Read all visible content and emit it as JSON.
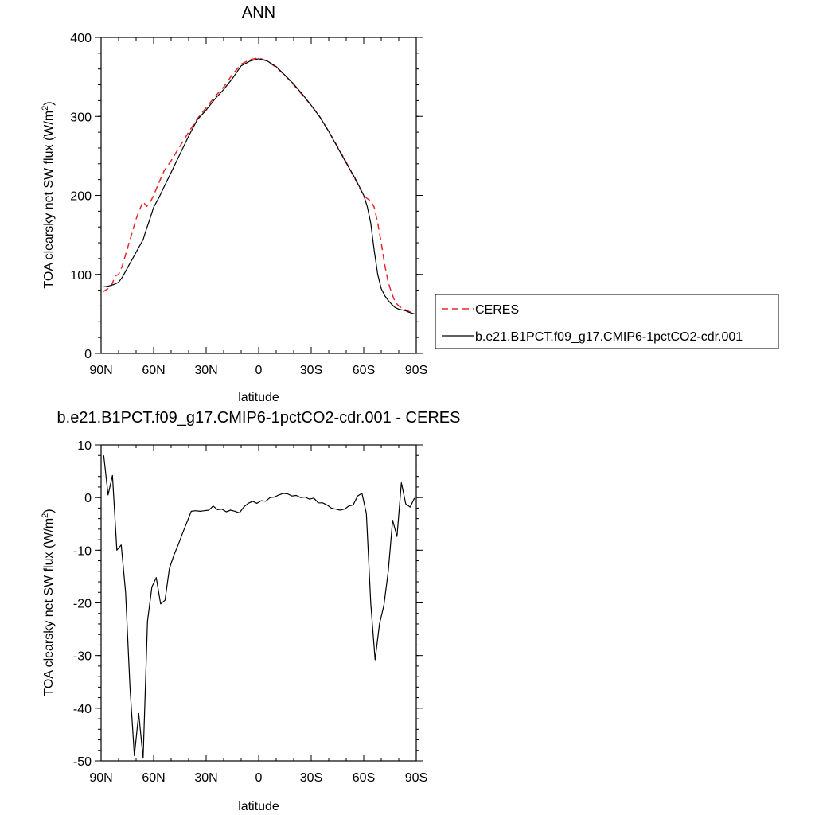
{
  "chart_data": [
    {
      "type": "line",
      "title": "ANN",
      "xlabel": "latitude",
      "ylabel": "TOA clearsky net SW flux (W/m",
      "ylabel_sup": "2",
      "ylabel_end": ")",
      "xlim": [
        90,
        -90
      ],
      "ylim": [
        0,
        400
      ],
      "xticks": [
        90,
        60,
        30,
        0,
        -30,
        -60,
        -90
      ],
      "xtick_labels": [
        "90N",
        "60N",
        "30N",
        "0",
        "30S",
        "60S",
        "90S"
      ],
      "yticks": [
        0,
        100,
        200,
        300,
        400
      ],
      "ytick_labels": [
        "0",
        "100",
        "200",
        "300",
        "400"
      ],
      "legend": "right",
      "series": [
        {
          "name": "CERES",
          "color": "#e8262a",
          "dash": "dashed",
          "x": [
            89,
            86,
            84,
            82,
            80,
            78,
            76,
            74,
            72,
            70,
            68,
            66,
            64,
            62,
            60,
            57,
            54,
            50,
            45,
            40,
            35,
            30,
            25,
            20,
            15,
            10,
            5,
            0,
            -5,
            -10,
            -15,
            -20,
            -25,
            -30,
            -35,
            -40,
            -45,
            -50,
            -55,
            -58,
            -60,
            -62,
            -64,
            -66,
            -68,
            -70,
            -72,
            -74,
            -76,
            -78,
            -80,
            -82,
            -84,
            -86,
            -89
          ],
          "y": [
            78,
            82,
            86,
            98,
            100,
            110,
            125,
            140,
            155,
            170,
            182,
            192,
            186,
            191,
            200,
            216,
            231,
            244,
            262,
            280,
            297,
            311,
            325,
            337,
            353,
            366,
            372,
            374,
            370,
            362,
            352,
            340,
            327,
            314,
            299,
            281,
            262,
            242,
            221,
            208,
            200,
            196,
            193,
            185,
            165,
            140,
            112,
            90,
            76,
            65,
            60,
            57,
            55,
            53,
            50
          ]
        },
        {
          "name": "b.e21.B1PCT.f09_g17.CMIP6-1pctCO2-cdr.001",
          "color": "#000000",
          "dash": "solid",
          "x": [
            89,
            86,
            83,
            80,
            78,
            76,
            74,
            72,
            70,
            68,
            66,
            64,
            62,
            60,
            57,
            54,
            50,
            45,
            40,
            35,
            30,
            25,
            20,
            15,
            10,
            5,
            0,
            -5,
            -10,
            -15,
            -20,
            -25,
            -30,
            -35,
            -40,
            -45,
            -50,
            -55,
            -58,
            -60,
            -62,
            -64,
            -66,
            -68,
            -70,
            -72,
            -74,
            -76,
            -78,
            -80,
            -82,
            -84,
            -86,
            -89
          ],
          "y": [
            84,
            85,
            87,
            90,
            96,
            104,
            112,
            120,
            128,
            136,
            144,
            158,
            171,
            185,
            197,
            211,
            229,
            252,
            275,
            296,
            308,
            322,
            334,
            348,
            364,
            370,
            373,
            370,
            363,
            352,
            341,
            328,
            314,
            299,
            281,
            261,
            241,
            222,
            209,
            200,
            186,
            165,
            130,
            100,
            82,
            73,
            67,
            62,
            58,
            56,
            55,
            54,
            52,
            50
          ]
        }
      ]
    },
    {
      "type": "line",
      "title": "b.e21.B1PCT.f09_g17.CMIP6-1pctCO2-cdr.001 - CERES",
      "xlabel": "latitude",
      "ylabel": "TOA clearsky net SW flux (W/m",
      "ylabel_sup": "2",
      "ylabel_end": ")",
      "xlim": [
        90,
        -90
      ],
      "ylim": [
        -50,
        10
      ],
      "xticks": [
        90,
        60,
        30,
        0,
        -30,
        -60,
        -90
      ],
      "xtick_labels": [
        "90N",
        "60N",
        "30N",
        "0",
        "30S",
        "60S",
        "90S"
      ],
      "yticks": [
        -50,
        -40,
        -30,
        -20,
        -10,
        0,
        10
      ],
      "ytick_labels": [
        "-50",
        "-40",
        "-30",
        "-20",
        "-10",
        "0",
        "10"
      ],
      "series": [
        {
          "color": "#000000",
          "dash": "solid",
          "x": [
            88.5,
            86,
            83.5,
            81,
            78.5,
            76,
            73.5,
            71,
            68.5,
            66,
            63.5,
            61,
            58.5,
            56,
            53.5,
            51,
            48.5,
            46,
            43.5,
            41,
            38.5,
            36,
            33.5,
            31,
            28.5,
            26,
            23.5,
            21,
            18.5,
            16,
            13.5,
            11,
            8.5,
            6,
            3.5,
            1,
            -1.5,
            -4,
            -6.5,
            -9,
            -11.5,
            -14,
            -16.5,
            -19,
            -21.5,
            -24,
            -26.5,
            -29,
            -31.5,
            -34,
            -36.5,
            -39,
            -41.5,
            -44,
            -46.5,
            -49,
            -51.5,
            -54,
            -56.5,
            -59,
            -61.5,
            -64,
            -66.5,
            -69,
            -71.5,
            -74,
            -76.5,
            -79,
            -81.5,
            -84,
            -86.5,
            -89
          ],
          "y": [
            8,
            0.5,
            4.2,
            -10,
            -9,
            -18,
            -36,
            -49,
            -41,
            -49.5,
            -23.5,
            -17,
            -15.2,
            -20.2,
            -19.5,
            -13.5,
            -11,
            -9,
            -6.8,
            -4.7,
            -2.6,
            -2.5,
            -2.6,
            -2.5,
            -2.4,
            -1.6,
            -2.3,
            -2.2,
            -2.7,
            -2.4,
            -2.6,
            -2.9,
            -1.8,
            -1.1,
            -0.7,
            -1.1,
            -0.6,
            -0.7,
            0,
            0.1,
            0.5,
            0.8,
            0.7,
            0.3,
            0.4,
            0,
            0.1,
            -0.3,
            -0.1,
            -1,
            -1,
            -1.4,
            -2,
            -2.2,
            -2.4,
            -2.2,
            -1.6,
            -1.4,
            0.3,
            0.8,
            -3,
            -20,
            -30.8,
            -24,
            -20.5,
            -14,
            -4.3,
            -7.4,
            2.8,
            -1.2,
            -1.8,
            -0.1
          ]
        }
      ]
    }
  ]
}
